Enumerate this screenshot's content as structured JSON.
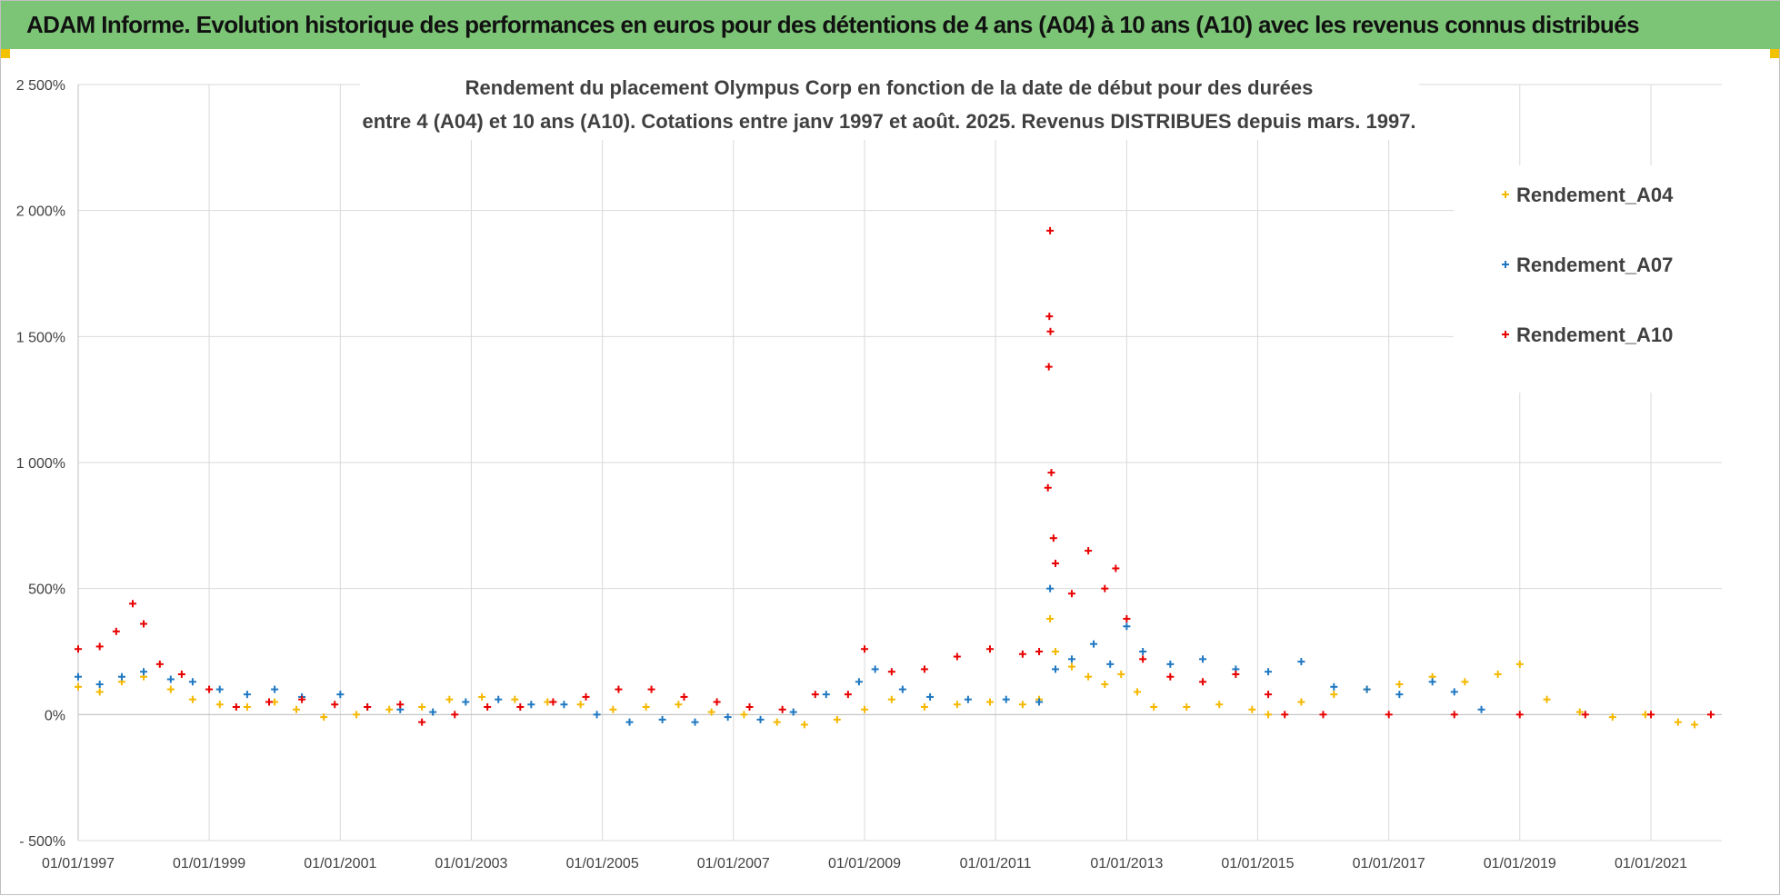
{
  "banner": {
    "title": "ADAM Informe. Evolution historique des performances en euros pour des détentions de 4 ans (A04) à 10 ans (A10) avec les revenus connus distribués"
  },
  "colors": {
    "banner_bg": "#7cc576",
    "A04": "#f5b800",
    "A07": "#1f78c1",
    "A10": "#e80000",
    "grid": "#d9d9d9"
  },
  "chart_data": {
    "type": "scatter",
    "title": "Rendement du placement Olympus Corp en fonction de la date de début pour des durées",
    "subtitle": "entre 4 (A04) et 10 ans (A10). Cotations entre janv 1997 et août. 2025. Revenus DISTRIBUES depuis mars. 1997.",
    "xlabel": "",
    "ylabel": "",
    "xlim": [
      "1997-01-01",
      "2022-01-31"
    ],
    "ylim": [
      -500,
      2500
    ],
    "y_ticks": [
      -500,
      0,
      500,
      1000,
      1500,
      2000,
      2500
    ],
    "y_tick_labels": [
      "- 500%",
      "0%",
      "500%",
      "1 000%",
      "1 500%",
      "2 000%",
      "2 500%"
    ],
    "x_ticks": [
      "1997-01-01",
      "1999-01-01",
      "2001-01-01",
      "2003-01-01",
      "2005-01-01",
      "2007-01-01",
      "2009-01-01",
      "2011-01-01",
      "2013-01-01",
      "2015-01-01",
      "2017-01-01",
      "2019-01-01",
      "2021-01-01"
    ],
    "x_tick_labels": [
      "01/01/1997",
      "01/01/1999",
      "01/01/2001",
      "01/01/2003",
      "01/01/2005",
      "01/01/2007",
      "01/01/2009",
      "01/01/2011",
      "01/01/2013",
      "01/01/2015",
      "01/01/2017",
      "01/01/2019",
      "01/01/2021"
    ],
    "grid": true,
    "legend_position": "right",
    "marker": "+",
    "series": [
      {
        "name": "Rendement_A04",
        "color": "#f5b800",
        "points": [
          [
            "1997-01-01",
            110
          ],
          [
            "1997-05-01",
            90
          ],
          [
            "1997-09-01",
            130
          ],
          [
            "1998-01-01",
            150
          ],
          [
            "1998-06-01",
            100
          ],
          [
            "1998-10-01",
            60
          ],
          [
            "1999-03-01",
            40
          ],
          [
            "1999-08-01",
            30
          ],
          [
            "2000-01-01",
            50
          ],
          [
            "2000-05-01",
            20
          ],
          [
            "2000-10-01",
            -10
          ],
          [
            "2001-04-01",
            0
          ],
          [
            "2001-10-01",
            20
          ],
          [
            "2002-04-01",
            30
          ],
          [
            "2002-09-01",
            60
          ],
          [
            "2003-03-01",
            70
          ],
          [
            "2003-09-01",
            60
          ],
          [
            "2004-03-01",
            50
          ],
          [
            "2004-09-01",
            40
          ],
          [
            "2005-03-01",
            20
          ],
          [
            "2005-09-01",
            30
          ],
          [
            "2006-03-01",
            40
          ],
          [
            "2006-09-01",
            10
          ],
          [
            "2007-03-01",
            0
          ],
          [
            "2007-09-01",
            -30
          ],
          [
            "2008-02-01",
            -40
          ],
          [
            "2008-08-01",
            -20
          ],
          [
            "2009-01-01",
            20
          ],
          [
            "2009-06-01",
            60
          ],
          [
            "2009-12-01",
            30
          ],
          [
            "2010-06-01",
            40
          ],
          [
            "2010-12-01",
            50
          ],
          [
            "2011-06-01",
            40
          ],
          [
            "2011-09-01",
            60
          ],
          [
            "2011-11-01",
            380
          ],
          [
            "2011-12-01",
            250
          ],
          [
            "2012-03-01",
            190
          ],
          [
            "2012-06-01",
            150
          ],
          [
            "2012-09-01",
            120
          ],
          [
            "2012-12-01",
            160
          ],
          [
            "2013-03-01",
            90
          ],
          [
            "2013-06-01",
            30
          ],
          [
            "2013-12-01",
            30
          ],
          [
            "2014-06-01",
            40
          ],
          [
            "2014-12-01",
            20
          ],
          [
            "2015-03-01",
            0
          ],
          [
            "2015-09-01",
            50
          ],
          [
            "2016-03-01",
            80
          ],
          [
            "2016-09-01",
            100
          ],
          [
            "2017-03-01",
            120
          ],
          [
            "2017-09-01",
            150
          ],
          [
            "2018-03-01",
            130
          ],
          [
            "2018-09-01",
            160
          ],
          [
            "2019-01-01",
            200
          ],
          [
            "2019-06-01",
            60
          ],
          [
            "2019-12-01",
            10
          ],
          [
            "2020-06-01",
            -10
          ],
          [
            "2020-12-01",
            0
          ],
          [
            "2021-06-01",
            -30
          ],
          [
            "2021-09-01",
            -40
          ]
        ]
      },
      {
        "name": "Rendement_A07",
        "color": "#1f78c1",
        "points": [
          [
            "1997-01-01",
            150
          ],
          [
            "1997-05-01",
            120
          ],
          [
            "1997-09-01",
            150
          ],
          [
            "1998-01-01",
            170
          ],
          [
            "1998-06-01",
            140
          ],
          [
            "1998-10-01",
            130
          ],
          [
            "1999-03-01",
            100
          ],
          [
            "1999-08-01",
            80
          ],
          [
            "2000-01-01",
            100
          ],
          [
            "2000-06-01",
            70
          ],
          [
            "2001-01-01",
            80
          ],
          [
            "2001-06-01",
            30
          ],
          [
            "2001-12-01",
            20
          ],
          [
            "2002-06-01",
            10
          ],
          [
            "2002-12-01",
            50
          ],
          [
            "2003-06-01",
            60
          ],
          [
            "2003-12-01",
            40
          ],
          [
            "2004-06-01",
            40
          ],
          [
            "2004-12-01",
            0
          ],
          [
            "2005-06-01",
            -30
          ],
          [
            "2005-12-01",
            -20
          ],
          [
            "2006-06-01",
            -30
          ],
          [
            "2006-12-01",
            -10
          ],
          [
            "2007-06-01",
            -20
          ],
          [
            "2007-12-01",
            10
          ],
          [
            "2008-06-01",
            80
          ],
          [
            "2008-12-01",
            130
          ],
          [
            "2009-03-01",
            180
          ],
          [
            "2009-08-01",
            100
          ],
          [
            "2010-01-01",
            70
          ],
          [
            "2010-08-01",
            60
          ],
          [
            "2011-03-01",
            60
          ],
          [
            "2011-09-01",
            50
          ],
          [
            "2011-11-01",
            500
          ],
          [
            "2011-12-01",
            180
          ],
          [
            "2012-03-01",
            220
          ],
          [
            "2012-07-01",
            280
          ],
          [
            "2012-10-01",
            200
          ],
          [
            "2013-01-01",
            350
          ],
          [
            "2013-04-01",
            250
          ],
          [
            "2013-09-01",
            200
          ],
          [
            "2014-03-01",
            220
          ],
          [
            "2014-09-01",
            180
          ],
          [
            "2015-03-01",
            170
          ],
          [
            "2015-09-01",
            210
          ],
          [
            "2016-03-01",
            110
          ],
          [
            "2016-09-01",
            100
          ],
          [
            "2017-03-01",
            80
          ],
          [
            "2017-09-01",
            130
          ],
          [
            "2018-01-01",
            90
          ],
          [
            "2018-06-01",
            20
          ]
        ]
      },
      {
        "name": "Rendement_A10",
        "color": "#e80000",
        "points": [
          [
            "1997-01-01",
            260
          ],
          [
            "1997-05-01",
            270
          ],
          [
            "1997-08-01",
            330
          ],
          [
            "1997-11-01",
            440
          ],
          [
            "1998-01-01",
            360
          ],
          [
            "1998-04-01",
            200
          ],
          [
            "1998-08-01",
            160
          ],
          [
            "1999-01-01",
            100
          ],
          [
            "1999-06-01",
            30
          ],
          [
            "1999-12-01",
            50
          ],
          [
            "2000-06-01",
            60
          ],
          [
            "2000-12-01",
            40
          ],
          [
            "2001-06-01",
            30
          ],
          [
            "2001-12-01",
            40
          ],
          [
            "2002-04-01",
            -30
          ],
          [
            "2002-10-01",
            0
          ],
          [
            "2003-04-01",
            30
          ],
          [
            "2003-10-01",
            30
          ],
          [
            "2004-04-01",
            50
          ],
          [
            "2004-10-01",
            70
          ],
          [
            "2005-04-01",
            100
          ],
          [
            "2005-10-01",
            100
          ],
          [
            "2006-04-01",
            70
          ],
          [
            "2006-10-01",
            50
          ],
          [
            "2007-04-01",
            30
          ],
          [
            "2007-10-01",
            20
          ],
          [
            "2008-04-01",
            80
          ],
          [
            "2008-10-01",
            80
          ],
          [
            "2009-01-01",
            260
          ],
          [
            "2009-06-01",
            170
          ],
          [
            "2009-12-01",
            180
          ],
          [
            "2010-06-01",
            230
          ],
          [
            "2010-12-01",
            260
          ],
          [
            "2011-06-01",
            240
          ],
          [
            "2011-09-01",
            250
          ],
          [
            "2011-10-20",
            900
          ],
          [
            "2011-10-25",
            1380
          ],
          [
            "2011-10-28",
            1580
          ],
          [
            "2011-11-01",
            1920
          ],
          [
            "2011-11-03",
            1520
          ],
          [
            "2011-11-08",
            960
          ],
          [
            "2011-11-20",
            700
          ],
          [
            "2011-12-01",
            600
          ],
          [
            "2012-03-01",
            480
          ],
          [
            "2012-06-01",
            650
          ],
          [
            "2012-09-01",
            500
          ],
          [
            "2012-11-01",
            580
          ],
          [
            "2013-01-01",
            380
          ],
          [
            "2013-04-01",
            220
          ],
          [
            "2013-09-01",
            150
          ],
          [
            "2014-03-01",
            130
          ],
          [
            "2014-09-01",
            160
          ],
          [
            "2015-03-01",
            80
          ],
          [
            "2015-06-01",
            0
          ],
          [
            "2016-01-01",
            0
          ],
          [
            "2017-01-01",
            0
          ],
          [
            "2018-01-01",
            0
          ],
          [
            "2019-01-01",
            0
          ],
          [
            "2020-01-01",
            0
          ],
          [
            "2021-01-01",
            0
          ],
          [
            "2021-12-01",
            0
          ]
        ]
      }
    ]
  }
}
